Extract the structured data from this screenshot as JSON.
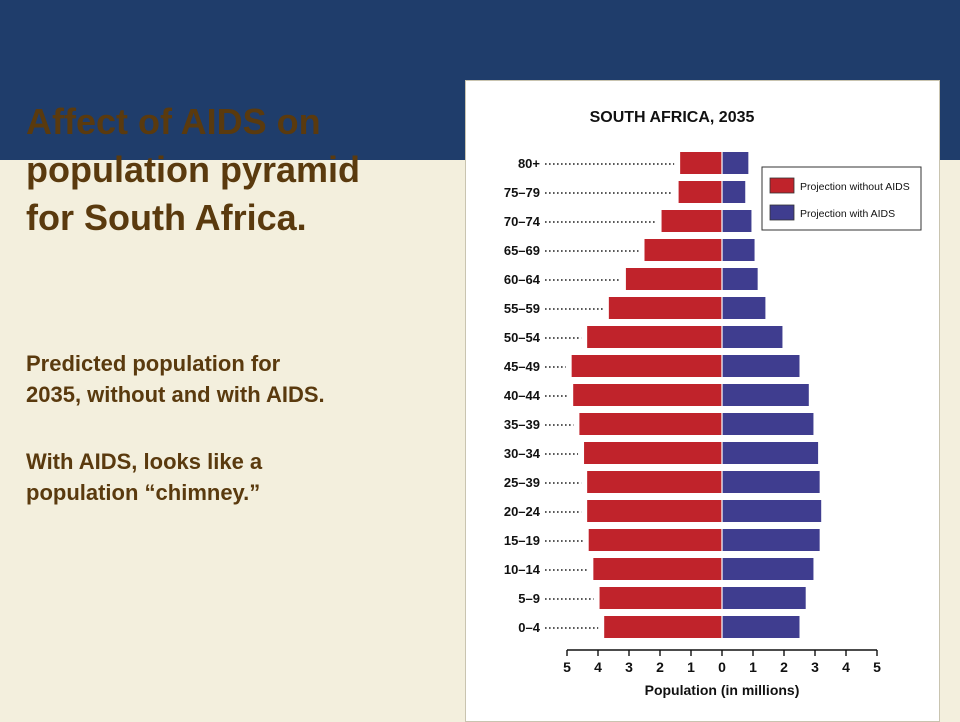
{
  "slide": {
    "title_line1": "Affect of AIDS on",
    "title_line2": "population pyramid",
    "title_line3": "for South Africa.",
    "paragraph1_line1": "Predicted population for",
    "paragraph1_line2": "2035, without and with AIDS.",
    "paragraph2_line1": "With AIDS, looks like a",
    "paragraph2_line2": "population “chimney.”"
  },
  "colors": {
    "band": "#1f3d6b",
    "background": "#f3efdd",
    "text": "#5a3a0e",
    "without_aids": "#c0232b",
    "with_aids": "#3f3d8f"
  },
  "chart_data": {
    "type": "bar",
    "title": "SOUTH AFRICA, 2035",
    "xlabel": "Population (in millions)",
    "ylabel": "",
    "xlim": [
      -5,
      5
    ],
    "x_ticks": [
      5,
      4,
      3,
      2,
      1,
      0,
      1,
      2,
      3,
      4,
      5
    ],
    "legend_position": "top-right",
    "categories": [
      "80+",
      "75–79",
      "70–74",
      "65–69",
      "60–64",
      "55–59",
      "50–54",
      "45–49",
      "40–44",
      "35–39",
      "30–34",
      "25–39",
      "20–24",
      "15–19",
      "10–14",
      "5–9",
      "0–4"
    ],
    "series": [
      {
        "name": "Projection without AIDS",
        "side": "left",
        "values": [
          1.35,
          1.4,
          1.95,
          2.5,
          3.1,
          3.65,
          4.35,
          4.85,
          4.8,
          4.6,
          4.45,
          4.35,
          4.35,
          4.3,
          4.15,
          3.95,
          3.8
        ]
      },
      {
        "name": "Projection with AIDS",
        "side": "right",
        "values": [
          0.85,
          0.75,
          0.95,
          1.05,
          1.15,
          1.4,
          1.95,
          2.5,
          2.8,
          2.95,
          3.1,
          3.15,
          3.2,
          3.15,
          2.95,
          2.7,
          2.5
        ]
      }
    ]
  }
}
